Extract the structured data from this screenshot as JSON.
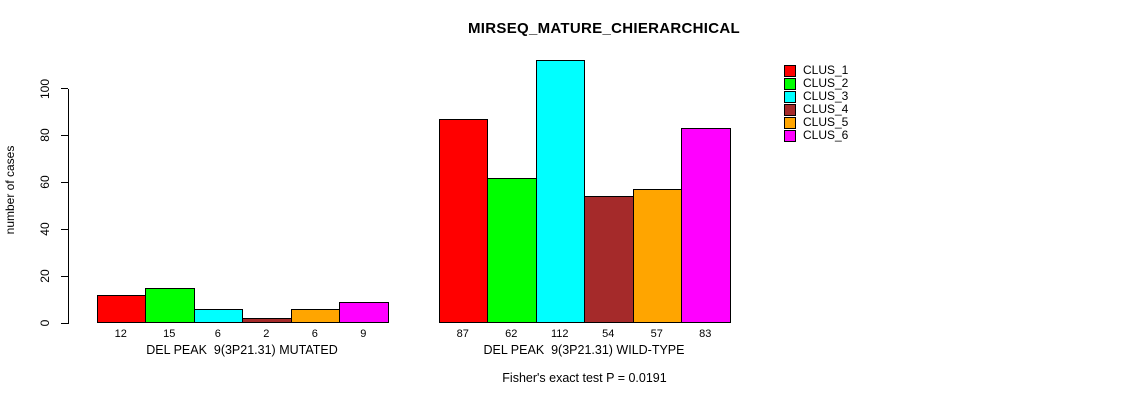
{
  "chart_data": {
    "type": "bar",
    "title": "MIRSEQ_MATURE_CHIERARCHICAL",
    "ylabel": "number of cases",
    "xlabel": "",
    "ylim": [
      0,
      100
    ],
    "yticks": [
      0,
      20,
      40,
      60,
      80,
      100
    ],
    "grid": false,
    "legend_position": "right",
    "series_names": [
      "CLUS_1",
      "CLUS_2",
      "CLUS_3",
      "CLUS_4",
      "CLUS_5",
      "CLUS_6"
    ],
    "colors": [
      "#FF0000",
      "#00FF00",
      "#00FFFF",
      "#A52A2A",
      "#FFA500",
      "#FF00FF"
    ],
    "groups": [
      {
        "label": "DEL PEAK  9(3P21.31) MUTATED",
        "values": [
          12,
          15,
          6,
          2,
          6,
          9
        ]
      },
      {
        "label": "DEL PEAK  9(3P21.31) WILD-TYPE",
        "values": [
          87,
          62,
          112,
          54,
          57,
          83
        ]
      }
    ],
    "annotation": "Fisher's exact test P = 0.0191"
  }
}
